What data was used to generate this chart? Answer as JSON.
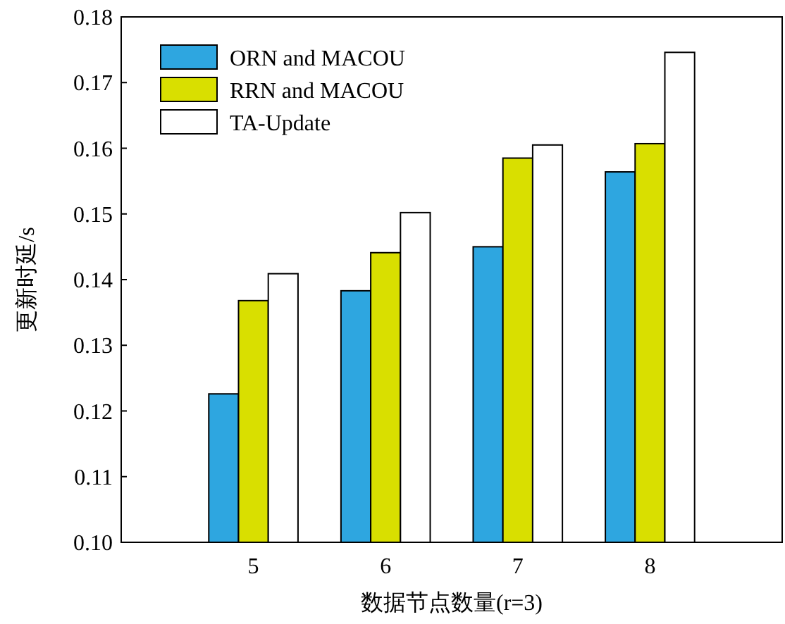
{
  "chart_data": {
    "type": "bar",
    "xlabel": "数据节点数量(r=3)",
    "ylabel": "更新时延/s",
    "categories": [
      "5",
      "6",
      "7",
      "8"
    ],
    "series": [
      {
        "name": "ORN and MACOU",
        "color": "#2ea6e0",
        "values": [
          0.1226,
          0.1383,
          0.145,
          0.1564
        ]
      },
      {
        "name": "RRN and MACOU",
        "color": "#d9df00",
        "values": [
          0.1368,
          0.1441,
          0.1585,
          0.1607
        ]
      },
      {
        "name": "TA-Update",
        "color": "#ffffff",
        "values": [
          0.1409,
          0.1502,
          0.1605,
          0.1746
        ]
      }
    ],
    "ylim": [
      0.1,
      0.18
    ],
    "yticks": [
      {
        "value": 0.1,
        "label": "0.10"
      },
      0.11,
      0.12,
      0.13,
      0.14,
      0.15,
      0.16,
      0.17,
      0.18
    ],
    "legend": "top left",
    "grid": false
  }
}
